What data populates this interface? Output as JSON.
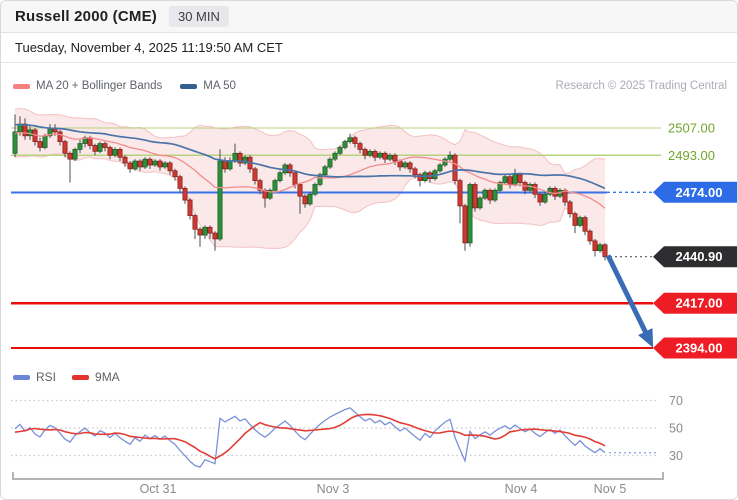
{
  "header": {
    "title": "Russell 2000 (CME)",
    "timeframe_badge": "30 MIN"
  },
  "dateline": "Tuesday, November 4, 2025 11:19:50 AM CET",
  "attribution": "Research © 2025 Trading Central",
  "price_legend": {
    "ma20_bb": "MA 20 + Bollinger Bands",
    "ma50": "MA 50"
  },
  "rsi_legend": {
    "rsi": "RSI",
    "ma9": "9MA"
  },
  "colors": {
    "ma20_legend": "#f5807f",
    "ma50_legend": "#33608e",
    "rsi_legend": "#6c86d7",
    "ma9_legend": "#e5322b",
    "candle_up": "#2f8f3c",
    "candle_up_border": "#1b6326",
    "candle_down": "#cc3a33",
    "candle_down_border": "#8e221d",
    "wick": "#4a4d52",
    "band_fill": "#f9d8d8",
    "band_edge": "#f2b9b9",
    "ma20_line": "#f28c8c",
    "ma50_line": "#4a74a8",
    "green_level_line": "#b5d37d",
    "green_level_text": "#72a42c",
    "blue_level": "#2e6be6",
    "blue_line": "#3a72e8",
    "red_level": "#ee1c24",
    "red_line": "#e80f0e",
    "dark_badge": "#2e2e31",
    "dotted_connector": "#58585c",
    "arrow": "#3a6cb5",
    "rsi_line": "#7b90da",
    "ma9_line": "#e23d36",
    "grid_dotted": "#c9c9cf",
    "axis_text": "#8a8a92",
    "axis_bracket": "#b3b3b8"
  },
  "chart_data": [
    {
      "type": "candlestick",
      "symbol": "Russell 2000 (CME)",
      "interval": "30 MIN",
      "ylim": [
        2390,
        2519
      ],
      "indicators": {
        "ma20_bollinger": true,
        "ma50": true
      },
      "levels": [
        {
          "label": "2507.00",
          "value": 2507.0,
          "kind": "resistance-line"
        },
        {
          "label": "2493.00",
          "value": 2493.0,
          "kind": "resistance-line"
        },
        {
          "label": "2474.00",
          "value": 2474.0,
          "kind": "pivot-badge-blue"
        },
        {
          "label": "2440.90",
          "value": 2440.9,
          "kind": "last-price-badge-dark"
        },
        {
          "label": "2417.00",
          "value": 2417.0,
          "kind": "support-badge-red"
        },
        {
          "label": "2394.00",
          "value": 2394.0,
          "kind": "support-badge-red"
        }
      ],
      "forecast_arrow": {
        "from_index": 118.6,
        "from_price": 2441.5,
        "to_index": 128.4,
        "to_price": 2396.5
      },
      "x_axis": {
        "ticks": [
          {
            "label": "Oct 31",
            "index": 28.6
          },
          {
            "label": "Nov 3",
            "index": 63.6
          },
          {
            "label": "Nov 4",
            "index": 101.2
          },
          {
            "label": "Nov 5",
            "index": 119.0
          }
        ]
      },
      "ohlc": [
        [
          2494,
          2514,
          2492,
          2505
        ],
        [
          2505,
          2513,
          2503,
          2509
        ],
        [
          2509,
          2512,
          2501,
          2503
        ],
        [
          2503,
          2508,
          2501,
          2506
        ],
        [
          2506,
          2507,
          2498,
          2500
        ],
        [
          2500,
          2502,
          2495,
          2497
        ],
        [
          2497,
          2504,
          2496,
          2503
        ],
        [
          2503,
          2509,
          2502,
          2507
        ],
        [
          2507,
          2509,
          2503,
          2505
        ],
        [
          2505,
          2506,
          2498,
          2500
        ],
        [
          2500,
          2501,
          2492,
          2494
        ],
        [
          2494,
          2495,
          2479,
          2491
        ],
        [
          2491,
          2497,
          2490,
          2496
        ],
        [
          2496,
          2501,
          2494,
          2499
        ],
        [
          2499,
          2503,
          2497,
          2502
        ],
        [
          2502,
          2503,
          2496,
          2498
        ],
        [
          2498,
          2499,
          2493,
          2495
        ],
        [
          2495,
          2500,
          2494,
          2499
        ],
        [
          2499,
          2500,
          2495,
          2497
        ],
        [
          2497,
          2498,
          2491,
          2493
        ],
        [
          2493,
          2497,
          2492,
          2496
        ],
        [
          2496,
          2497,
          2490,
          2492
        ],
        [
          2492,
          2493,
          2487,
          2489
        ],
        [
          2489,
          2490,
          2484,
          2486
        ],
        [
          2486,
          2491,
          2485,
          2490
        ],
        [
          2490,
          2491,
          2485,
          2487
        ],
        [
          2487,
          2492,
          2486,
          2491
        ],
        [
          2491,
          2492,
          2486,
          2488
        ],
        [
          2488,
          2491,
          2487,
          2490
        ],
        [
          2490,
          2491,
          2485,
          2487
        ],
        [
          2487,
          2490,
          2486,
          2489
        ],
        [
          2489,
          2490,
          2483,
          2485
        ],
        [
          2485,
          2486,
          2480,
          2482
        ],
        [
          2482,
          2483,
          2474,
          2476
        ],
        [
          2476,
          2477,
          2468,
          2470
        ],
        [
          2470,
          2471,
          2460,
          2462
        ],
        [
          2462,
          2463,
          2450,
          2455
        ],
        [
          2455,
          2456,
          2446,
          2452
        ],
        [
          2452,
          2457,
          2450,
          2456
        ],
        [
          2456,
          2457,
          2450,
          2453
        ],
        [
          2453,
          2454,
          2444,
          2450
        ],
        [
          2450,
          2496,
          2449,
          2490
        ],
        [
          2490,
          2492,
          2484,
          2486
        ],
        [
          2486,
          2492,
          2485,
          2490
        ],
        [
          2490,
          2499,
          2489,
          2494
        ],
        [
          2494,
          2495,
          2487,
          2489
        ],
        [
          2489,
          2493,
          2488,
          2492
        ],
        [
          2492,
          2493,
          2484,
          2486
        ],
        [
          2486,
          2487,
          2478,
          2480
        ],
        [
          2480,
          2481,
          2473,
          2475
        ],
        [
          2475,
          2476,
          2466,
          2471
        ],
        [
          2471,
          2476,
          2470,
          2475
        ],
        [
          2475,
          2481,
          2474,
          2480
        ],
        [
          2480,
          2485,
          2479,
          2484
        ],
        [
          2484,
          2489,
          2483,
          2488
        ],
        [
          2488,
          2489,
          2482,
          2484
        ],
        [
          2484,
          2485,
          2476,
          2478
        ],
        [
          2478,
          2479,
          2463,
          2472
        ],
        [
          2472,
          2473,
          2466,
          2468
        ],
        [
          2468,
          2474,
          2467,
          2473
        ],
        [
          2473,
          2479,
          2472,
          2478
        ],
        [
          2478,
          2484,
          2477,
          2483
        ],
        [
          2483,
          2488,
          2482,
          2487
        ],
        [
          2487,
          2492,
          2486,
          2491
        ],
        [
          2491,
          2495,
          2490,
          2494
        ],
        [
          2494,
          2498,
          2493,
          2497
        ],
        [
          2497,
          2501,
          2496,
          2500
        ],
        [
          2500,
          2504,
          2499,
          2502
        ],
        [
          2502,
          2503,
          2497,
          2499
        ],
        [
          2499,
          2500,
          2494,
          2496
        ],
        [
          2496,
          2497,
          2491,
          2493
        ],
        [
          2493,
          2496,
          2492,
          2495
        ],
        [
          2495,
          2496,
          2490,
          2492
        ],
        [
          2492,
          2495,
          2491,
          2494
        ],
        [
          2494,
          2495,
          2489,
          2491
        ],
        [
          2491,
          2494,
          2490,
          2493
        ],
        [
          2493,
          2494,
          2488,
          2490
        ],
        [
          2490,
          2491,
          2485,
          2487
        ],
        [
          2487,
          2490,
          2486,
          2489
        ],
        [
          2489,
          2490,
          2484,
          2486
        ],
        [
          2486,
          2487,
          2481,
          2483
        ],
        [
          2483,
          2484,
          2477,
          2480
        ],
        [
          2480,
          2485,
          2479,
          2484
        ],
        [
          2484,
          2485,
          2479,
          2481
        ],
        [
          2481,
          2486,
          2480,
          2485
        ],
        [
          2485,
          2489,
          2484,
          2488
        ],
        [
          2488,
          2492,
          2487,
          2491
        ],
        [
          2491,
          2495,
          2490,
          2493
        ],
        [
          2493,
          2494,
          2478,
          2480
        ],
        [
          2480,
          2481,
          2458,
          2467
        ],
        [
          2467,
          2468,
          2444,
          2448
        ],
        [
          2448,
          2479,
          2446,
          2478
        ],
        [
          2478,
          2479,
          2464,
          2466
        ],
        [
          2466,
          2472,
          2465,
          2471
        ],
        [
          2471,
          2476,
          2470,
          2475
        ],
        [
          2475,
          2476,
          2468,
          2470
        ],
        [
          2470,
          2476,
          2469,
          2475
        ],
        [
          2475,
          2480,
          2474,
          2479
        ],
        [
          2479,
          2483,
          2478,
          2482
        ],
        [
          2482,
          2483,
          2476,
          2478
        ],
        [
          2478,
          2486,
          2477,
          2483
        ],
        [
          2483,
          2484,
          2477,
          2479
        ],
        [
          2479,
          2480,
          2473,
          2475
        ],
        [
          2475,
          2479,
          2474,
          2478
        ],
        [
          2478,
          2479,
          2471,
          2473
        ],
        [
          2473,
          2474,
          2467,
          2469
        ],
        [
          2469,
          2474,
          2468,
          2473
        ],
        [
          2473,
          2477,
          2472,
          2476
        ],
        [
          2476,
          2477,
          2470,
          2472
        ],
        [
          2472,
          2476,
          2471,
          2475
        ],
        [
          2475,
          2476,
          2467,
          2469
        ],
        [
          2469,
          2470,
          2461,
          2463
        ],
        [
          2463,
          2464,
          2453,
          2457
        ],
        [
          2457,
          2462,
          2456,
          2461
        ],
        [
          2461,
          2462,
          2452,
          2454
        ],
        [
          2454,
          2455,
          2447,
          2449
        ],
        [
          2449,
          2450,
          2441,
          2444
        ],
        [
          2444,
          2448,
          2443,
          2447
        ],
        [
          2447,
          2448,
          2439,
          2440.9
        ]
      ]
    },
    {
      "type": "line",
      "name": "RSI(14) with 9-period MA",
      "derived_from": "ohlc closes",
      "ylim": [
        15,
        80
      ],
      "gridlines": [
        70,
        50,
        30
      ],
      "gridline_labels": [
        "70",
        "50",
        "30"
      ]
    }
  ]
}
